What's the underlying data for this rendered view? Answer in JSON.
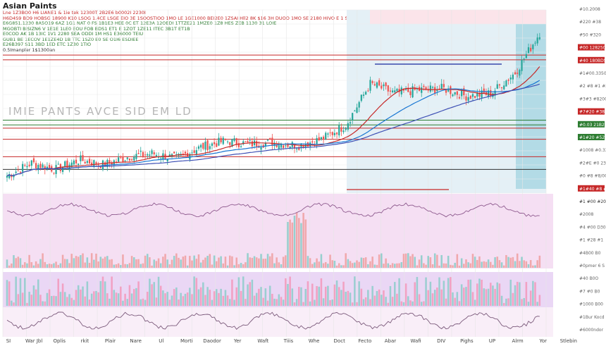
{
  "header": {
    "title": "Asian Paints",
    "subtitle": "sianu ade adunos.",
    "info_lines": [
      {
        "text": "Lne 1Z3BO0 H6 LIANE1 & 1ie tek 12300T 2B2E6 b0002I 2230I",
        "color": "#c62828"
      },
      {
        "text": "H6D4S9 BO9 HOBSG 18900 K10 LSOG 1.4CE LSGE EIO 3E 1SOOSTIOO 1MO LE 1GE1000 BEI2E0 1ZSAI Hll2 8K $16 3H DUOO 1MO SE 2180 HIVO E 1 S1 3Ien",
        "color": "#c62828"
      },
      {
        "text": "E6G851.1230 8A5O19 6AZ 1G1 NAT 0 FS 1B1E3 HEE 0C ET 12E3A 12OEDI 1TTZE21 1MZE0 1Z8 HES ZEB 1130 31 LOIE",
        "color": "#2e7d32"
      },
      {
        "text": "MGOBTI BISIZN6 V 1E1E 1LE0 EOU FOB BDS1 ET1 E 1ZOT 1ZE11 ITEC 3B1T ET1B",
        "color": "#2e7d32"
      },
      {
        "text": "E0COD AK 1B 13IC 1V1 2280 SEA ODDI 1M HS1 E36000 TEIU",
        "color": "#2e7d32"
      },
      {
        "text": "GUB1 BE 1ECOV 1E1ZE4D 1B TTC 1SZ0 E0 SE O1I6 ESDIEE",
        "color": "#2e7d32"
      },
      {
        "text": "E26B397 S11 3BD 1ED ETC 1Z30 1TIO",
        "color": "#2e7d32"
      },
      {
        "text": "0.5Imanpler 1$1300an",
        "color": "#333333"
      }
    ]
  },
  "watermark": "IMIE PANTS AVCE SID EM LD",
  "colors": {
    "up": "#26a69a",
    "down": "#ef5350",
    "rsi_band": "#ead7f5",
    "volume_band": "#f5dff3",
    "highlight": "#d6e8f2"
  },
  "right_axis": [
    {
      "label": "#10.2008",
      "color": "#666666"
    },
    {
      "label": "#220 #38",
      "color": "#666666"
    },
    {
      "label": "#50 #320",
      "color": "#666666"
    },
    {
      "label": "#00 128250",
      "color": "#c62828"
    },
    {
      "label": "#40 180BDS",
      "color": "#c62828"
    },
    {
      "label": "#1#00.33500",
      "color": "#666666"
    },
    {
      "label": "#2 #8 #1 #20",
      "color": "#666666"
    },
    {
      "label": "#3#3 #8200",
      "color": "#666666"
    },
    {
      "label": "#7#20 #3800",
      "color": "#c62828"
    },
    {
      "label": "#0.03 21B2S",
      "color": "#2e7d32"
    },
    {
      "label": "#1#20 #52600",
      "color": "#2e7d32"
    },
    {
      "label": "#1008 #0.33",
      "color": "#666666"
    },
    {
      "label": "#2#E #0 233",
      "color": "#666666"
    },
    {
      "label": "#0 #8 #8/00",
      "color": "#666666"
    },
    {
      "label": "#1#40 #8 #28",
      "color": "#c62828"
    },
    {
      "label": "#1 #00 #20",
      "color": "#333333"
    },
    {
      "label": "#2008",
      "color": "#666666"
    },
    {
      "label": "#4 #00 D30",
      "color": "#666666"
    },
    {
      "label": "#1 #28 #1",
      "color": "#666666"
    },
    {
      "label": "#4B00 B0",
      "color": "#666666"
    },
    {
      "label": "#0pmer 6 S",
      "color": "#666666"
    },
    {
      "label": "#40 B0O",
      "color": "#666666"
    },
    {
      "label": "#7 #0 B0",
      "color": "#666666"
    },
    {
      "label": "#1000 B00",
      "color": "#666666"
    },
    {
      "label": "#1Bur Kocd",
      "color": "#666666"
    },
    {
      "label": "#6000ndor",
      "color": "#666666"
    }
  ],
  "x_axis_labels": [
    "SI",
    "War Jbl",
    "Oplis",
    "rkit",
    "Plair",
    "Nare",
    "Ul",
    "Morti",
    "Daodor",
    "Yer",
    "Waft",
    "Tiiis",
    "Whe",
    "Doct",
    "Fecto",
    "Abar",
    "Wafi",
    "DIV",
    "Pighs",
    "UP",
    "Alrm",
    "Yor",
    "Stlebin"
  ],
  "chart_data": {
    "type": "candlestick",
    "title": "Asian Paints",
    "xlabel": "",
    "ylabel": "",
    "x": [
      "SI",
      "War Jbl",
      "Oplis",
      "rkit",
      "Plair",
      "Nare",
      "Ul",
      "Morti",
      "Daodor",
      "Yer",
      "Waft",
      "Tiiis",
      "Whe",
      "Doct",
      "Fecto",
      "Abar",
      "Wafi",
      "DIV",
      "Pighs",
      "UP",
      "Alrm",
      "Yor",
      "Stlebin"
    ],
    "close": [
      40,
      48,
      44,
      50,
      47,
      52,
      54,
      51,
      58,
      62,
      60,
      61,
      59,
      63,
      72,
      98,
      92,
      94,
      95,
      90,
      92,
      105,
      130
    ],
    "ylim": [
      30,
      140
    ],
    "horizontal_levels": [
      {
        "value": 116,
        "color": "#c62828"
      },
      {
        "value": 113,
        "color": "#c62828"
      },
      {
        "value": 75,
        "color": "#2e7d32"
      },
      {
        "value": 72,
        "color": "#2e7d32"
      },
      {
        "value": 70,
        "color": "#c62828"
      },
      {
        "value": 63,
        "color": "#c62828"
      },
      {
        "value": 52,
        "color": "#c62828"
      },
      {
        "value": 44,
        "color": "#333333"
      }
    ],
    "grid": true
  }
}
